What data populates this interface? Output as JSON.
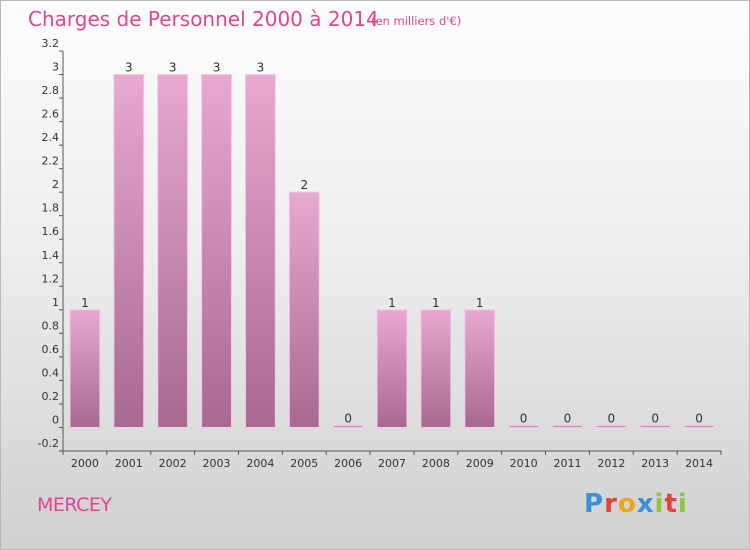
{
  "header": {
    "title": "Charges de Personnel 2000 à 2014",
    "subtitle": "(en milliers d'€)"
  },
  "footer": {
    "commune": "MERCEY",
    "logo_letters": [
      {
        "ch": "P",
        "color": "#3a8fd6"
      },
      {
        "ch": "r",
        "color": "#e8403a"
      },
      {
        "ch": "o",
        "color": "#f2a21b"
      },
      {
        "ch": "x",
        "color": "#3a8fd6"
      },
      {
        "ch": "i",
        "color": "#8cc63f"
      },
      {
        "ch": "t",
        "color": "#e8403a"
      },
      {
        "ch": "i",
        "color": "#8cc63f"
      }
    ]
  },
  "colors": {
    "bar_top": "#e8a8d0",
    "bar_bottom": "#a86890",
    "accent": "#e0458f"
  },
  "chart_data": {
    "type": "bar",
    "categories": [
      "2000",
      "2001",
      "2002",
      "2003",
      "2004",
      "2005",
      "2006",
      "2007",
      "2008",
      "2009",
      "2010",
      "2011",
      "2012",
      "2013",
      "2014"
    ],
    "values": [
      1,
      3,
      3,
      3,
      3,
      2,
      0,
      1,
      1,
      1,
      0,
      0,
      0,
      0,
      0
    ],
    "data_labels": [
      "1",
      "3",
      "3",
      "3",
      "3",
      "2",
      "0",
      "1",
      "1",
      "1",
      "0",
      "0",
      "0",
      "0",
      "0"
    ],
    "title": "Charges de Personnel 2000 à 2014",
    "subtitle": "(en milliers d'€)",
    "ylim": [
      -0.2,
      3.2
    ],
    "yticks": [
      {
        "v": 3.2,
        "label": "3.2"
      },
      {
        "v": 3,
        "label": "3"
      },
      {
        "v": 2.8,
        "label": "2.8"
      },
      {
        "v": 2.6,
        "label": "2.6"
      },
      {
        "v": 2.4,
        "label": "2.4"
      },
      {
        "v": 2.2,
        "label": "2.2"
      },
      {
        "v": 2,
        "label": "2"
      },
      {
        "v": 1.8,
        "label": "1.8"
      },
      {
        "v": 1.6,
        "label": "1.6"
      },
      {
        "v": 1.4,
        "label": "1.4"
      },
      {
        "v": 1.2,
        "label": "1.2"
      },
      {
        "v": 1,
        "label": "1"
      },
      {
        "v": 0.8,
        "label": "0.8"
      },
      {
        "v": 0.6,
        "label": "0.6"
      },
      {
        "v": 0.4,
        "label": "0.4"
      },
      {
        "v": 0.2,
        "label": "0.2"
      },
      {
        "v": 0,
        "label": "0"
      },
      {
        "v": -0.2,
        "label": "-0.2"
      }
    ],
    "grid": false,
    "legend": "none"
  }
}
